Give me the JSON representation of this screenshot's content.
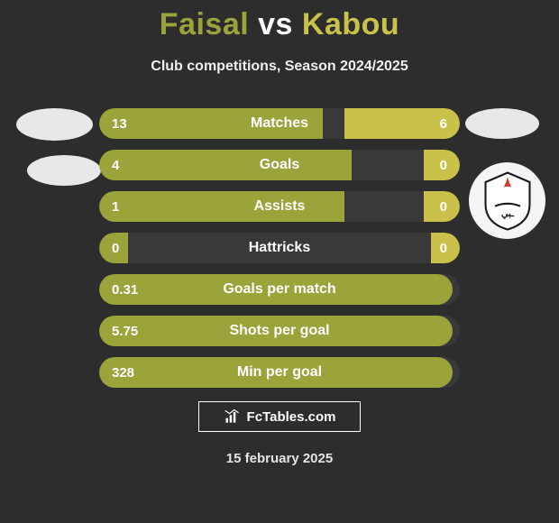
{
  "colors": {
    "background": "#2d2d2d",
    "text_light": "#ffffff",
    "player1_accent": "#9aa43a",
    "player2_accent": "#c9c14a",
    "bar_track": "rgba(255,255,255,0.06)"
  },
  "header": {
    "player1": "Faisal",
    "vs": "vs",
    "player2": "Kabou",
    "subtitle": "Club competitions, Season 2024/2025"
  },
  "stats": [
    {
      "label": "Matches",
      "left_val": "13",
      "right_val": "6",
      "left_pct": 62,
      "right_pct": 32
    },
    {
      "label": "Goals",
      "left_val": "4",
      "right_val": "0",
      "left_pct": 70,
      "right_pct": 10
    },
    {
      "label": "Assists",
      "left_val": "1",
      "right_val": "0",
      "left_pct": 68,
      "right_pct": 10
    },
    {
      "label": "Hattricks",
      "left_val": "0",
      "right_val": "0",
      "left_pct": 8,
      "right_pct": 8
    },
    {
      "label": "Goals per match",
      "left_val": "0.31",
      "right_val": "",
      "left_pct": 98,
      "right_pct": 0
    },
    {
      "label": "Shots per goal",
      "left_val": "5.75",
      "right_val": "",
      "left_pct": 98,
      "right_pct": 0
    },
    {
      "label": "Min per goal",
      "left_val": "328",
      "right_val": "",
      "left_pct": 98,
      "right_pct": 0
    }
  ],
  "footer": {
    "brand_prefix": "Fc",
    "brand_suffix": "Tables.com",
    "date": "15 february 2025"
  }
}
